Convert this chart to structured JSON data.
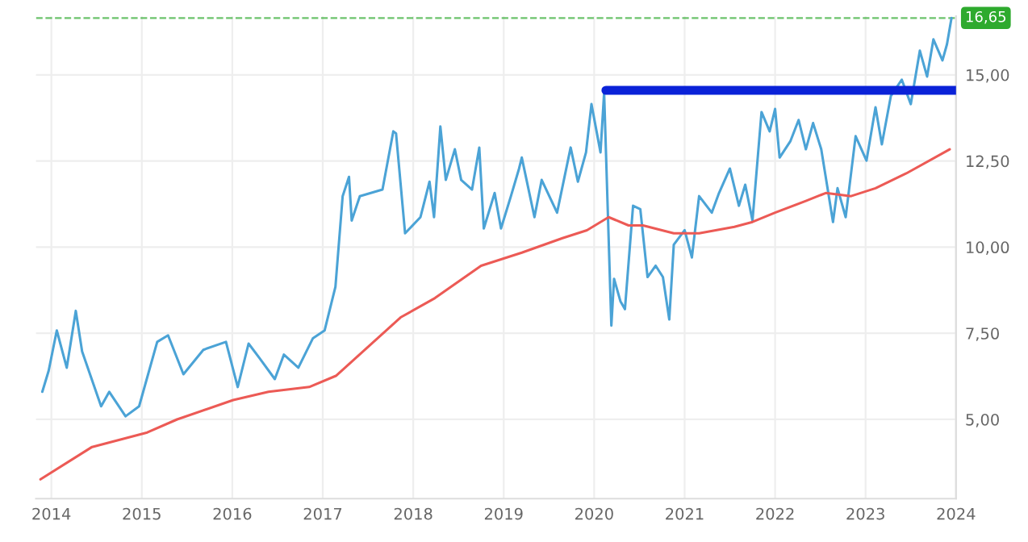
{
  "chart_data": {
    "type": "line",
    "xlim": [
      2013.83,
      2024.0
    ],
    "xticks": [
      2014,
      2015,
      2016,
      2017,
      2018,
      2019,
      2020,
      2021,
      2022,
      2023,
      2024
    ],
    "ylim": [
      2.7,
      16.7
    ],
    "yticks": [
      {
        "value": 5,
        "label": "5,00"
      },
      {
        "value": 7.5,
        "label": "7,50"
      },
      {
        "value": 10,
        "label": "10,00"
      },
      {
        "value": 12.5,
        "label": "12,50"
      },
      {
        "value": 15,
        "label": "15,00"
      }
    ],
    "grid": true,
    "series": [
      {
        "color": "#4ba3d6",
        "x": [
          2013.9,
          2013.97,
          2014.06,
          2014.17,
          2014.27,
          2014.34,
          2014.55,
          2014.64,
          2014.82,
          2014.97,
          2015.17,
          2015.29,
          2015.46,
          2015.68,
          2015.93,
          2016.06,
          2016.18,
          2016.3,
          2016.47,
          2016.57,
          2016.73,
          2016.89,
          2017.02,
          2017.14,
          2017.22,
          2017.29,
          2017.32,
          2017.41,
          2017.66,
          2017.78,
          2017.81,
          2017.91,
          2018.08,
          2018.18,
          2018.23,
          2018.3,
          2018.36,
          2018.46,
          2018.53,
          2018.65,
          2018.73,
          2018.78,
          2018.9,
          2018.97,
          2019.08,
          2019.17,
          2019.2,
          2019.34,
          2019.42,
          2019.59,
          2019.74,
          2019.82,
          2019.91,
          2019.97,
          2020.07,
          2020.11,
          2020.19,
          2020.22,
          2020.29,
          2020.34,
          2020.43,
          2020.51,
          2020.59,
          2020.68,
          2020.76,
          2020.83,
          2020.88,
          2021.0,
          2021.08,
          2021.16,
          2021.3,
          2021.38,
          2021.5,
          2021.6,
          2021.67,
          2021.75,
          2021.85,
          2021.94,
          2022.0,
          2022.05,
          2022.17,
          2022.26,
          2022.34,
          2022.42,
          2022.51,
          2022.64,
          2022.69,
          2022.78,
          2022.89,
          2023.01,
          2023.11,
          2023.18,
          2023.28,
          2023.4,
          2023.5,
          2023.6,
          2023.68,
          2023.75,
          2023.85,
          2023.9,
          2023.95
        ],
        "values": [
          5.8,
          6.41,
          7.58,
          6.5,
          8.15,
          6.97,
          5.38,
          5.8,
          5.09,
          5.38,
          7.25,
          7.44,
          6.31,
          7.02,
          7.25,
          5.94,
          7.2,
          6.78,
          6.17,
          6.88,
          6.5,
          7.35,
          7.58,
          8.85,
          11.48,
          12.04,
          10.77,
          11.48,
          11.67,
          13.36,
          13.3,
          10.4,
          10.87,
          11.9,
          10.87,
          13.5,
          11.95,
          12.84,
          11.95,
          11.67,
          12.89,
          10.54,
          11.57,
          10.54,
          11.48,
          12.28,
          12.6,
          10.87,
          11.95,
          11.0,
          12.89,
          11.9,
          12.75,
          14.15,
          12.75,
          14.48,
          7.72,
          9.08,
          8.43,
          8.2,
          11.2,
          11.1,
          9.13,
          9.46,
          9.13,
          7.9,
          10.07,
          10.49,
          9.7,
          11.48,
          11.0,
          11.57,
          12.28,
          11.2,
          11.81,
          10.77,
          13.92,
          13.36,
          14.01,
          12.6,
          13.08,
          13.69,
          12.84,
          13.6,
          12.84,
          10.73,
          11.71,
          10.87,
          13.22,
          12.51,
          14.06,
          12.98,
          14.39,
          14.86,
          14.15,
          15.7,
          14.95,
          16.03,
          15.42,
          15.89,
          16.65
        ]
      },
      {
        "color": "#ec5a55",
        "x": [
          2013.88,
          2014.45,
          2015.06,
          2015.39,
          2016.01,
          2016.4,
          2016.85,
          2017.15,
          2017.86,
          2018.24,
          2018.75,
          2019.2,
          2019.65,
          2019.92,
          2020.16,
          2020.38,
          2020.54,
          2020.88,
          2021.16,
          2021.55,
          2021.75,
          2022.0,
          2022.34,
          2022.56,
          2022.84,
          2023.11,
          2023.45,
          2023.93
        ],
        "values": [
          3.26,
          4.2,
          4.62,
          5.0,
          5.56,
          5.8,
          5.94,
          6.27,
          7.96,
          8.52,
          9.46,
          9.84,
          10.26,
          10.49,
          10.87,
          10.63,
          10.63,
          10.4,
          10.4,
          10.59,
          10.73,
          11.0,
          11.34,
          11.57,
          11.48,
          11.71,
          12.14,
          12.84
        ]
      },
      {
        "color": "#0a22d8",
        "x": [
          2020.13,
          2024.0
        ],
        "values": [
          14.55,
          14.55
        ]
      }
    ],
    "ref_lines": [
      {
        "axis": "y",
        "value": 16.65,
        "label": "16,65",
        "color": "#2eaa2e",
        "line_style": "dashed"
      }
    ]
  }
}
